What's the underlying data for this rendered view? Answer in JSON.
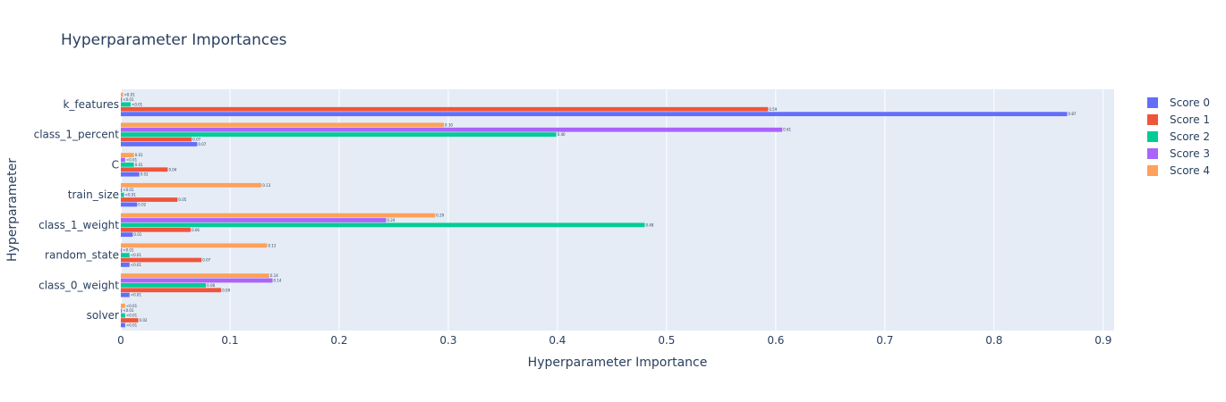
{
  "chart_data": {
    "type": "bar",
    "orientation": "horizontal",
    "title": "Hyperparameter Importances",
    "xlabel": "Hyperparameter Importance",
    "ylabel": "Hyperparameter",
    "xlim": [
      0,
      0.91
    ],
    "x_ticks": [
      0,
      0.1,
      0.2,
      0.3,
      0.4,
      0.5,
      0.6,
      0.7,
      0.8,
      0.9
    ],
    "x_tick_labels": [
      "0",
      "0.1",
      "0.2",
      "0.3",
      "0.4",
      "0.5",
      "0.6",
      "0.7",
      "0.8",
      "0.9"
    ],
    "grid": true,
    "legend_position": "right",
    "categories": [
      "k_features",
      "class_1_percent",
      "C",
      "train_size",
      "class_1_weight",
      "random_state",
      "class_0_weight",
      "solver"
    ],
    "series": [
      {
        "name": "Score 0",
        "color": "#636efa",
        "values": [
          0.867,
          0.07,
          0.017,
          0.015,
          0.011,
          0.008,
          0.008,
          0.004
        ],
        "labels": [
          "0.87",
          "0.07",
          "0.02",
          "0.02",
          "0.01",
          "<0.01",
          "<0.01",
          "<0.01"
        ]
      },
      {
        "name": "Score 1",
        "color": "#EF553B",
        "values": [
          0.593,
          0.065,
          0.043,
          0.052,
          0.064,
          0.074,
          0.092,
          0.016
        ],
        "labels": [
          "0.59",
          "0.07",
          "0.04",
          "0.05",
          "0.06",
          "0.07",
          "0.09",
          "0.02"
        ]
      },
      {
        "name": "Score 2",
        "color": "#00cc96",
        "values": [
          0.009,
          0.399,
          0.012,
          0.003,
          0.48,
          0.008,
          0.078,
          0.004
        ],
        "labels": [
          "<0.01",
          "0.40",
          "0.01",
          "<0.01",
          "0.48",
          "<0.01",
          "0.08",
          "<0.01"
        ]
      },
      {
        "name": "Score 3",
        "color": "#ab63fa",
        "values": [
          0.001,
          0.606,
          0.004,
          0.001,
          0.243,
          0.001,
          0.139,
          0.001
        ],
        "labels": [
          "<0.01",
          "0.61",
          "<0.01",
          "<0.01",
          "0.24",
          "<0.01",
          "0.14",
          "<0.01"
        ]
      },
      {
        "name": "Score 4",
        "color": "#FFA15A",
        "values": [
          0.002,
          0.296,
          0.012,
          0.129,
          0.288,
          0.134,
          0.136,
          0.004
        ],
        "labels": [
          "<0.01",
          "0.30",
          "0.01",
          "0.13",
          "0.29",
          "0.13",
          "0.14",
          "<0.01"
        ]
      }
    ]
  }
}
